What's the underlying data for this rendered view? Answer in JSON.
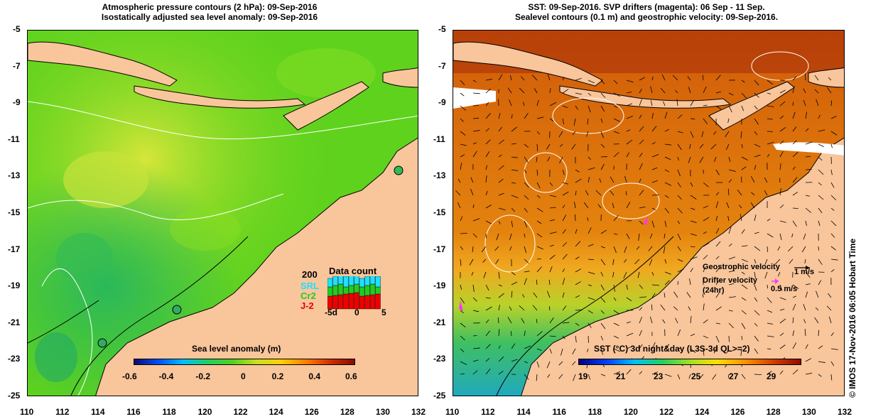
{
  "left_panel": {
    "title_line1": "Atmospheric pressure contours (2 hPa): 09-Sep-2016",
    "title_line2": "Isostatically adjusted sea level anomaly: 09-Sep-2016",
    "colorbar": {
      "title": "Sea level anomaly (m)",
      "labels": [
        "-0.6",
        "-0.4",
        "-0.2",
        "0",
        "0.2",
        "0.4",
        "0.6"
      ]
    },
    "data_count": {
      "title": "Data count",
      "max_label": "200",
      "series_labels": [
        "SRL",
        "Cr2",
        "J-2"
      ],
      "series_colors": [
        "#1ee0ff",
        "#22cc22",
        "#ee0000"
      ],
      "x_labels": [
        "-5d",
        "0",
        "5"
      ]
    }
  },
  "right_panel": {
    "title_line1": "SST: 09-Sep-2016. SVP drifters (magenta): 06 Sep - 11 Sep.",
    "title_line2": "Sealevel contours (0.1 m) and geostrophic velocity: 09-Sep-2016.",
    "colorbar": {
      "title": "SST (°C) 3d night&day (L3S-3d QL>=2)",
      "labels": [
        "19",
        "21",
        "23",
        "25",
        "27",
        "29"
      ]
    },
    "legend": {
      "geostrophic_label": "Geostrophic velocity",
      "geostrophic_scale": "1 m/s",
      "drifter_label_line1": "Drifter velocity",
      "drifter_label_line2": "(24hr)",
      "drifter_scale": "0.5 m/s"
    }
  },
  "axes": {
    "x_ticks": [
      "110",
      "112",
      "114",
      "116",
      "118",
      "120",
      "122",
      "124",
      "126",
      "128",
      "130",
      "132"
    ],
    "y_ticks": [
      "-5",
      "-7",
      "-9",
      "-11",
      "-13",
      "-15",
      "-17",
      "-19",
      "-21",
      "-23",
      "-25"
    ]
  },
  "credit": "© IMOS 17-Nov-2016 06:05 Hobart Time",
  "colors": {
    "land": "#f9c59b",
    "sea_green": "#44cc22",
    "sst_orange": "#e07a10",
    "contour_white": "#ffffff",
    "drifter_magenta": "#ff33ff"
  }
}
